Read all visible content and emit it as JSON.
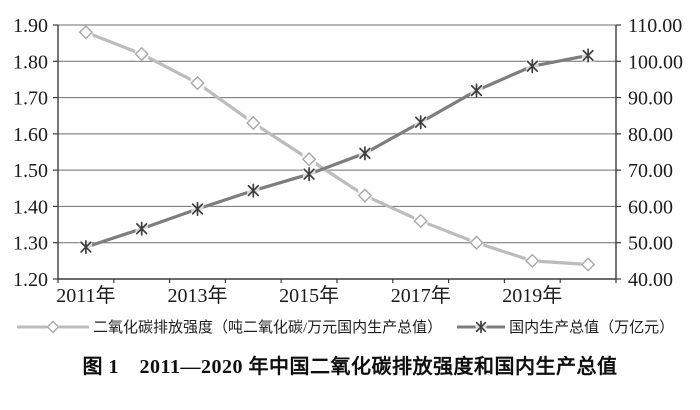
{
  "figure": {
    "caption": "图 1　2011—2020 年中国二氧化碳排放强度和国内生产总值"
  },
  "chart_data": {
    "type": "line",
    "title": "图 1　2011—2020 年中国二氧化碳排放强度和国内生产总值",
    "x": [
      2011,
      2012,
      2013,
      2014,
      2015,
      2016,
      2017,
      2018,
      2019,
      2020
    ],
    "x_labels": [
      {
        "i": 0,
        "t": "2011年"
      },
      {
        "i": 2,
        "t": "2013年"
      },
      {
        "i": 4,
        "t": "2015年"
      },
      {
        "i": 6,
        "t": "2017年"
      },
      {
        "i": 8,
        "t": "2019年"
      }
    ],
    "series": [
      {
        "name": "二氧化碳排放强度（吨二氧化碳/万元国内生产总值）",
        "axis": "left",
        "marker": "diamond",
        "color": "#bcbcbc",
        "marker_color": "#a8a8a8",
        "values": [
          1.88,
          1.82,
          1.74,
          1.63,
          1.53,
          1.43,
          1.36,
          1.3,
          1.25,
          1.24
        ]
      },
      {
        "name": "国内生产总值（万亿元）",
        "axis": "right",
        "marker": "asterisk",
        "color": "#7d7d7d",
        "marker_color": "#3e3e3e",
        "values": [
          48.79,
          53.86,
          59.3,
          64.36,
          68.89,
          74.64,
          83.2,
          91.93,
          98.65,
          101.6
        ]
      }
    ],
    "left_axis": {
      "min": 1.2,
      "max": 1.9,
      "step": 0.1,
      "decimals": 2
    },
    "right_axis": {
      "min": 40.0,
      "max": 110.0,
      "step": 10.0,
      "decimals": 2
    },
    "grid": true,
    "legend_position": "bottom",
    "colors": {
      "gridline": "#6f6f6f",
      "axis": "#3c3c3c",
      "tick_label": "#1b1b1b",
      "background": "#ffffff"
    }
  }
}
